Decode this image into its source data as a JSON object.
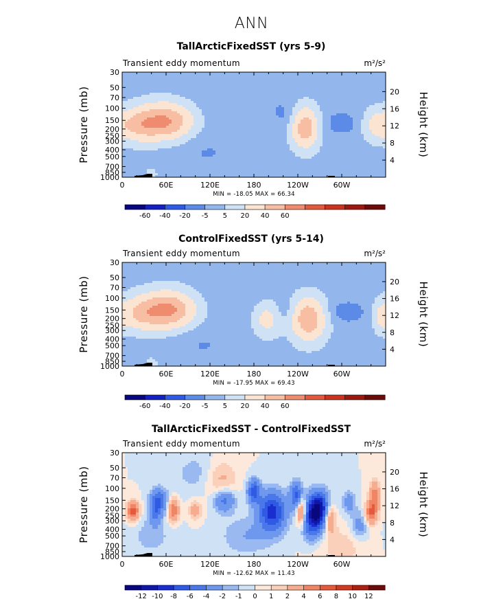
{
  "page": {
    "title": "ANN"
  },
  "chart_data": [
    {
      "type": "heatmap",
      "title": "TallArcticFixedSST (yrs 5-9)",
      "left_label": "Transient eddy momentum",
      "units": "m²/s²",
      "ylabel": "Pressure (mb)",
      "ylabel_right": "Height (km)",
      "x_ticks": [
        "0",
        "60E",
        "120E",
        "180",
        "120W",
        "60W"
      ],
      "x_tick_values": [
        0,
        60,
        120,
        180,
        240,
        300
      ],
      "xlim": [
        0,
        360
      ],
      "y_ticks": [
        "30",
        "50",
        "70",
        "100",
        "150",
        "200",
        "250",
        "300",
        "400",
        "500",
        "700",
        "850",
        "1000"
      ],
      "y_tick_values": [
        30,
        50,
        70,
        100,
        150,
        200,
        250,
        300,
        400,
        500,
        700,
        850,
        1000
      ],
      "ylim": [
        1000,
        30
      ],
      "y_scale": "log",
      "height_ticks": [
        "4",
        "8",
        "12",
        "16",
        "20"
      ],
      "height_tick_values": [
        4,
        8,
        12,
        16,
        20
      ],
      "min_max_text": "MIN = -18.05   MAX =  66.34",
      "stats": {
        "min": -18.05,
        "max": 66.34
      },
      "colorbar_labels": [
        "-60",
        "-40",
        "-20",
        "-5",
        "5",
        "20",
        "40",
        "60"
      ],
      "colorbar_colors": [
        "#08077d",
        "#1420c2",
        "#2e5ae4",
        "#5b8be6",
        "#93b6ed",
        "#cfe1f5",
        "#fbe4d2",
        "#f8bea4",
        "#ef8c6f",
        "#e25a3d",
        "#c9331f",
        "#9a1a12",
        "#6b0c0a"
      ],
      "background_color": "#fde9db",
      "features": [
        {
          "lon": 60,
          "p": 155,
          "amp": 62,
          "sx": 26,
          "sy": 0.19
        },
        {
          "lon": 22,
          "p": 175,
          "amp": 34,
          "sx": 18,
          "sy": 0.17
        },
        {
          "lon": 250,
          "p": 190,
          "amp": 55,
          "sx": 13,
          "sy": 0.21
        },
        {
          "lon": 348,
          "p": 175,
          "amp": 26,
          "sx": 14,
          "sy": 0.16
        },
        {
          "lon": 185,
          "p": 190,
          "amp": 7,
          "sx": 20,
          "sy": 0.16
        },
        {
          "lon": 300,
          "p": 165,
          "amp": -9,
          "sx": 22,
          "sy": 0.13
        },
        {
          "lon": 225,
          "p": 130,
          "amp": -7,
          "sx": 14,
          "sy": 0.14
        },
        {
          "lon": 155,
          "p": 80,
          "amp": -5,
          "sx": 55,
          "sy": 0.35
        },
        {
          "lon": 100,
          "p": 350,
          "amp": -4,
          "sx": 35,
          "sy": 0.18
        },
        {
          "lon": 130,
          "p": 650,
          "amp": -3,
          "sx": 50,
          "sy": 0.2
        },
        {
          "lon": 40,
          "p": 900,
          "amp": 12,
          "sx": 6,
          "sy": 0.06
        }
      ]
    },
    {
      "type": "heatmap",
      "title": "ControlFixedSST (yrs 5-14)",
      "left_label": "Transient eddy momentum",
      "units": "m²/s²",
      "ylabel": "Pressure (mb)",
      "ylabel_right": "Height (km)",
      "x_ticks": [
        "0",
        "60E",
        "120E",
        "180",
        "120W",
        "60W"
      ],
      "x_tick_values": [
        0,
        60,
        120,
        180,
        240,
        300
      ],
      "xlim": [
        0,
        360
      ],
      "y_ticks": [
        "30",
        "50",
        "70",
        "100",
        "150",
        "200",
        "250",
        "300",
        "400",
        "500",
        "700",
        "850",
        "1000"
      ],
      "y_tick_values": [
        30,
        50,
        70,
        100,
        150,
        200,
        250,
        300,
        400,
        500,
        700,
        850,
        1000
      ],
      "ylim": [
        1000,
        30
      ],
      "y_scale": "log",
      "height_ticks": [
        "4",
        "8",
        "12",
        "16",
        "20"
      ],
      "height_tick_values": [
        4,
        8,
        12,
        16,
        20
      ],
      "min_max_text": "MIN = -17.95   MAX =  69.43",
      "stats": {
        "min": -17.95,
        "max": 69.43
      },
      "colorbar_labels": [
        "-60",
        "-40",
        "-20",
        "-5",
        "5",
        "20",
        "40",
        "60"
      ],
      "colorbar_colors": [
        "#08077d",
        "#1420c2",
        "#2e5ae4",
        "#5b8be6",
        "#93b6ed",
        "#cfe1f5",
        "#fbe4d2",
        "#f8bea4",
        "#ef8c6f",
        "#e25a3d",
        "#c9331f",
        "#9a1a12",
        "#6b0c0a"
      ],
      "background_color": "#fde9db",
      "features": [
        {
          "lon": 62,
          "p": 150,
          "amp": 66,
          "sx": 26,
          "sy": 0.19
        },
        {
          "lon": 22,
          "p": 170,
          "amp": 30,
          "sx": 18,
          "sy": 0.17
        },
        {
          "lon": 255,
          "p": 205,
          "amp": 58,
          "sx": 16,
          "sy": 0.22
        },
        {
          "lon": 198,
          "p": 205,
          "amp": 28,
          "sx": 13,
          "sy": 0.17
        },
        {
          "lon": 355,
          "p": 190,
          "amp": 22,
          "sx": 8,
          "sy": 0.16
        },
        {
          "lon": 222,
          "p": 160,
          "amp": -8,
          "sx": 10,
          "sy": 0.12
        },
        {
          "lon": 305,
          "p": 160,
          "amp": -10,
          "sx": 22,
          "sy": 0.12
        },
        {
          "lon": 150,
          "p": 80,
          "amp": -5,
          "sx": 28,
          "sy": 0.35
        },
        {
          "lon": 100,
          "p": 380,
          "amp": -4,
          "sx": 30,
          "sy": 0.18
        },
        {
          "lon": 120,
          "p": 700,
          "amp": -3,
          "sx": 40,
          "sy": 0.2
        },
        {
          "lon": 40,
          "p": 900,
          "amp": 12,
          "sx": 6,
          "sy": 0.06
        }
      ]
    },
    {
      "type": "heatmap",
      "title": "TallArcticFixedSST - ControlFixedSST",
      "left_label": "Transient eddy momentum",
      "units": "m²/s²",
      "ylabel": "Pressure (mb)",
      "ylabel_right": "Height (km)",
      "x_ticks": [
        "0",
        "60E",
        "120E",
        "180",
        "120W",
        "60W"
      ],
      "x_tick_values": [
        0,
        60,
        120,
        180,
        240,
        300
      ],
      "xlim": [
        0,
        360
      ],
      "y_ticks": [
        "30",
        "50",
        "70",
        "100",
        "150",
        "200",
        "250",
        "300",
        "400",
        "500",
        "700",
        "850",
        "1000"
      ],
      "y_tick_values": [
        30,
        50,
        70,
        100,
        150,
        200,
        250,
        300,
        400,
        500,
        700,
        850,
        1000
      ],
      "ylim": [
        1000,
        30
      ],
      "y_scale": "log",
      "height_ticks": [
        "4",
        "8",
        "12",
        "16",
        "20"
      ],
      "height_tick_values": [
        4,
        8,
        12,
        16,
        20
      ],
      "min_max_text": "MIN = -12.62   MAX =  11.43",
      "stats": {
        "min": -12.62,
        "max": 11.43
      },
      "colorbar_labels": [
        "-12",
        "-10",
        "-8",
        "-6",
        "-4",
        "-2",
        "-1",
        "0",
        "1",
        "2",
        "4",
        "6",
        "8",
        "10",
        "12"
      ],
      "colorbar_colors": [
        "#08077d",
        "#0f16a8",
        "#1a2ed0",
        "#2e5ae4",
        "#4a78ea",
        "#6e98ee",
        "#9ab9f1",
        "#cfe1f5",
        "#fde9db",
        "#fbd0ba",
        "#f6ac8f",
        "#ef8565",
        "#e35a3c",
        "#cf3a22",
        "#ac2014",
        "#6b0c0a"
      ],
      "background_color": "#fde9db",
      "features": [
        {
          "lon": 205,
          "p": 220,
          "amp": -9,
          "sx": 13,
          "sy": 0.2
        },
        {
          "lon": 268,
          "p": 200,
          "amp": -12,
          "sx": 11,
          "sy": 0.17
        },
        {
          "lon": 245,
          "p": 215,
          "amp": 7,
          "sx": 5,
          "sy": 0.15
        },
        {
          "lon": 238,
          "p": 130,
          "amp": -7,
          "sx": 6,
          "sy": 0.14
        },
        {
          "lon": 180,
          "p": 110,
          "amp": -7,
          "sx": 6,
          "sy": 0.12
        },
        {
          "lon": 260,
          "p": 330,
          "amp": -6,
          "sx": 10,
          "sy": 0.18
        },
        {
          "lon": 283,
          "p": 260,
          "amp": 6,
          "sx": 6,
          "sy": 0.16
        },
        {
          "lon": 15,
          "p": 215,
          "amp": 7,
          "sx": 6,
          "sy": 0.1
        },
        {
          "lon": 50,
          "p": 150,
          "amp": -6,
          "sx": 8,
          "sy": 0.12
        },
        {
          "lon": 45,
          "p": 235,
          "amp": -4,
          "sx": 6,
          "sy": 0.12
        },
        {
          "lon": 70,
          "p": 210,
          "amp": 6,
          "sx": 5,
          "sy": 0.12
        },
        {
          "lon": 100,
          "p": 210,
          "amp": 3,
          "sx": 6,
          "sy": 0.1
        },
        {
          "lon": 140,
          "p": 150,
          "amp": -5,
          "sx": 10,
          "sy": 0.12
        },
        {
          "lon": 135,
          "p": 75,
          "amp": 2.5,
          "sx": 15,
          "sy": 0.2
        },
        {
          "lon": 170,
          "p": 500,
          "amp": -2,
          "sx": 25,
          "sy": 0.2
        },
        {
          "lon": 345,
          "p": 125,
          "amp": 5,
          "sx": 5,
          "sy": 0.15
        },
        {
          "lon": 340,
          "p": 230,
          "amp": 6,
          "sx": 6,
          "sy": 0.12
        },
        {
          "lon": 310,
          "p": 160,
          "amp": -3,
          "sx": 6,
          "sy": 0.12
        },
        {
          "lon": 325,
          "p": 350,
          "amp": -3,
          "sx": 8,
          "sy": 0.15
        },
        {
          "lon": 100,
          "p": 60,
          "amp": -1.5,
          "sx": 20,
          "sy": 0.2
        },
        {
          "lon": 40,
          "p": 500,
          "amp": -1.5,
          "sx": 20,
          "sy": 0.2
        },
        {
          "lon": 300,
          "p": 700,
          "amp": 1.5,
          "sx": 25,
          "sy": 0.2
        }
      ]
    }
  ]
}
